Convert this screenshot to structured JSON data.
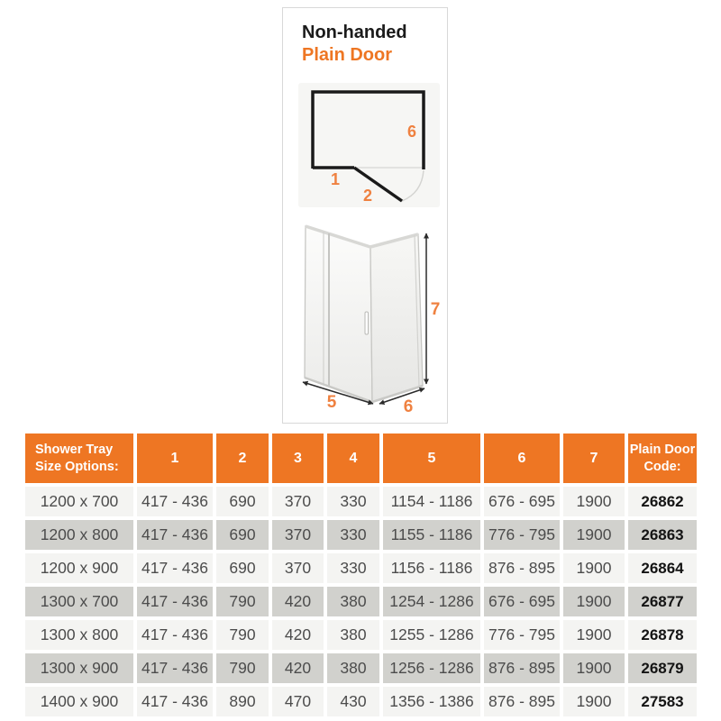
{
  "colors": {
    "accent": "#ee7623",
    "label_orange": "#ef8140",
    "row_light": "#f4f4f2",
    "row_dark": "#d1d1cd",
    "cell_text": "#4c4c4c",
    "code_text": "#141414"
  },
  "card": {
    "title_line1": "Non-handed",
    "title_line2": "Plain Door",
    "plan_labels": {
      "l1": "1",
      "l2": "2",
      "l6": "6"
    },
    "iso_labels": {
      "l5": "5",
      "l6": "6",
      "l7": "7"
    }
  },
  "table": {
    "headers": [
      "Shower Tray Size Options:",
      "1",
      "2",
      "3",
      "4",
      "5",
      "6",
      "7",
      "Plain Door Code:"
    ],
    "rows": [
      [
        "1200 x 700",
        "417 - 436",
        "690",
        "370",
        "330",
        "1154 - 1186",
        "676 - 695",
        "1900",
        "26862"
      ],
      [
        "1200 x 800",
        "417 - 436",
        "690",
        "370",
        "330",
        "1155 - 1186",
        "776 - 795",
        "1900",
        "26863"
      ],
      [
        "1200 x 900",
        "417 - 436",
        "690",
        "370",
        "330",
        "1156 - 1186",
        "876 - 895",
        "1900",
        "26864"
      ],
      [
        "1300 x 700",
        "417 - 436",
        "790",
        "420",
        "380",
        "1254 - 1286",
        "676 - 695",
        "1900",
        "26877"
      ],
      [
        "1300 x 800",
        "417 - 436",
        "790",
        "420",
        "380",
        "1255 - 1286",
        "776 - 795",
        "1900",
        "26878"
      ],
      [
        "1300 x 900",
        "417 - 436",
        "790",
        "420",
        "380",
        "1256 - 1286",
        "876 - 895",
        "1900",
        "26879"
      ],
      [
        "1400 x 900",
        "417 - 436",
        "890",
        "470",
        "430",
        "1356 - 1386",
        "876 - 895",
        "1900",
        "27583"
      ]
    ]
  }
}
